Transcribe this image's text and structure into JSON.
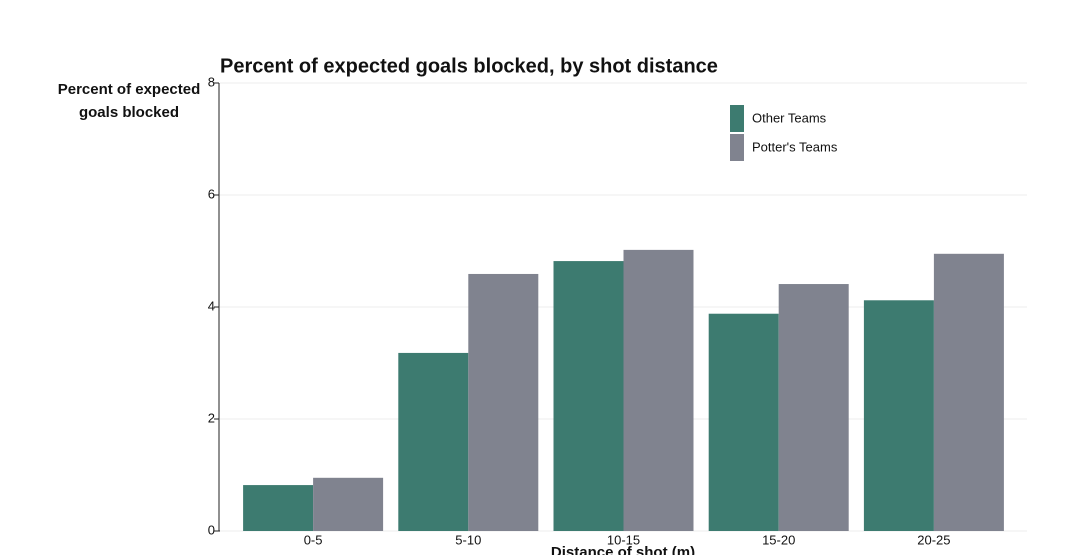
{
  "chart_data": {
    "type": "bar",
    "title": "Percent of expected goals blocked, by shot distance",
    "y_label": "Percent of expected goals blocked",
    "x_label": "Distance of shot (m)",
    "categories": [
      "0-5",
      "5-10",
      "10-15",
      "15-20",
      "20-25"
    ],
    "series": [
      {
        "name": "Other Teams",
        "color": "#3d7b70",
        "values": [
          0.82,
          3.18,
          4.82,
          3.88,
          4.12
        ]
      },
      {
        "name": "Potter's Teams",
        "color": "#80838f",
        "values": [
          0.95,
          4.59,
          5.02,
          4.41,
          4.95
        ]
      }
    ],
    "ylim": [
      0,
      8
    ],
    "yticks": [
      0,
      2,
      4,
      6,
      8
    ],
    "grid": true,
    "legend": "upper right"
  }
}
